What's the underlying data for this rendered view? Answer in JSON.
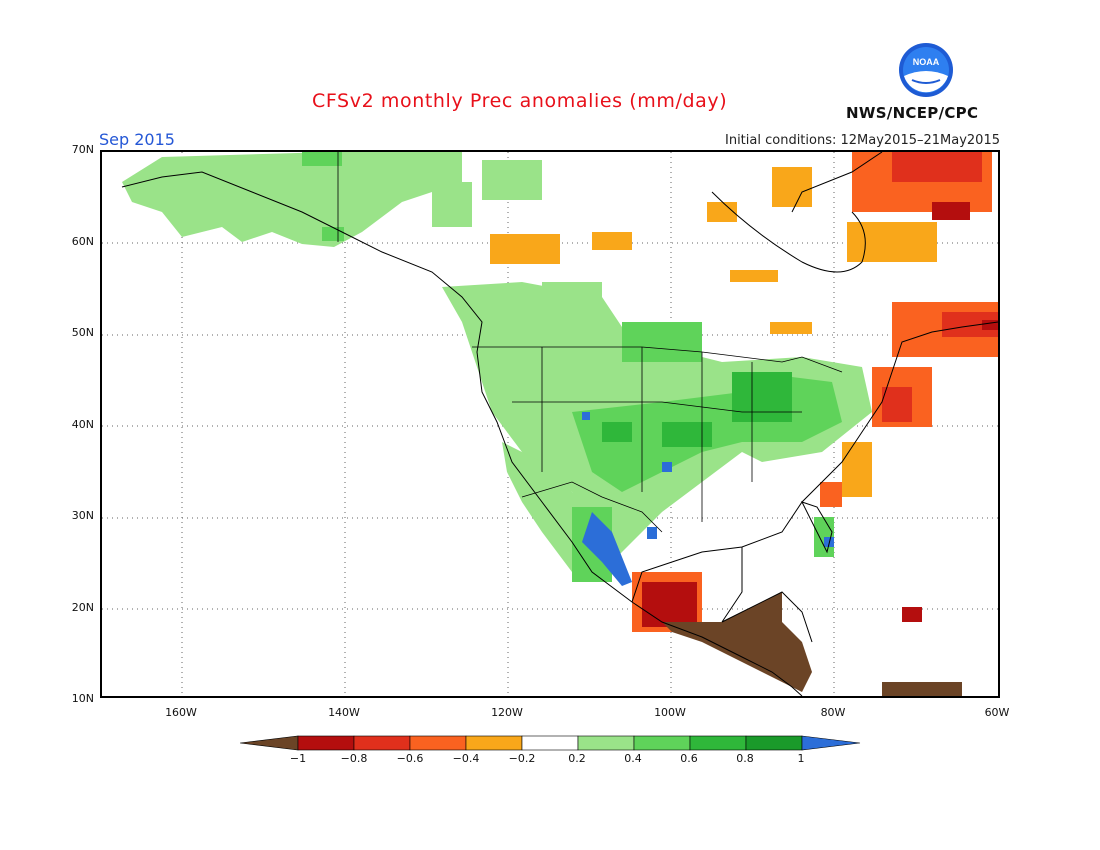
{
  "header": {
    "title": "CFSv2 monthly Prec anomalies (mm/day)",
    "month": "Sep 2015",
    "initial_conditions": "Initial conditions: 12May2015–21May2015",
    "agency": "NWS/NCEP/CPC",
    "logo_text": "NOAA"
  },
  "axes": {
    "lat_labels": [
      "70N",
      "60N",
      "50N",
      "40N",
      "30N",
      "20N",
      "10N"
    ],
    "lon_labels": [
      "160W",
      "140W",
      "120W",
      "100W",
      "80W",
      "60W"
    ]
  },
  "colorbar": {
    "ticks": [
      "−1",
      "−0.8",
      "−0.6",
      "−0.4",
      "−0.2",
      "0.2",
      "0.4",
      "0.6",
      "0.8",
      "1"
    ],
    "colors": [
      "#6b4426",
      "#b40e0e",
      "#e0301c",
      "#fa6220",
      "#f9a71a",
      "#ffffff",
      "#9ae389",
      "#5fd35a",
      "#2fb73a",
      "#1a9a2a",
      "#2c6ed8"
    ]
  },
  "map_legend": {
    "domain": "North America",
    "lat_range": [
      "10N",
      "70N"
    ],
    "lon_range": [
      "170W",
      "60W"
    ]
  }
}
